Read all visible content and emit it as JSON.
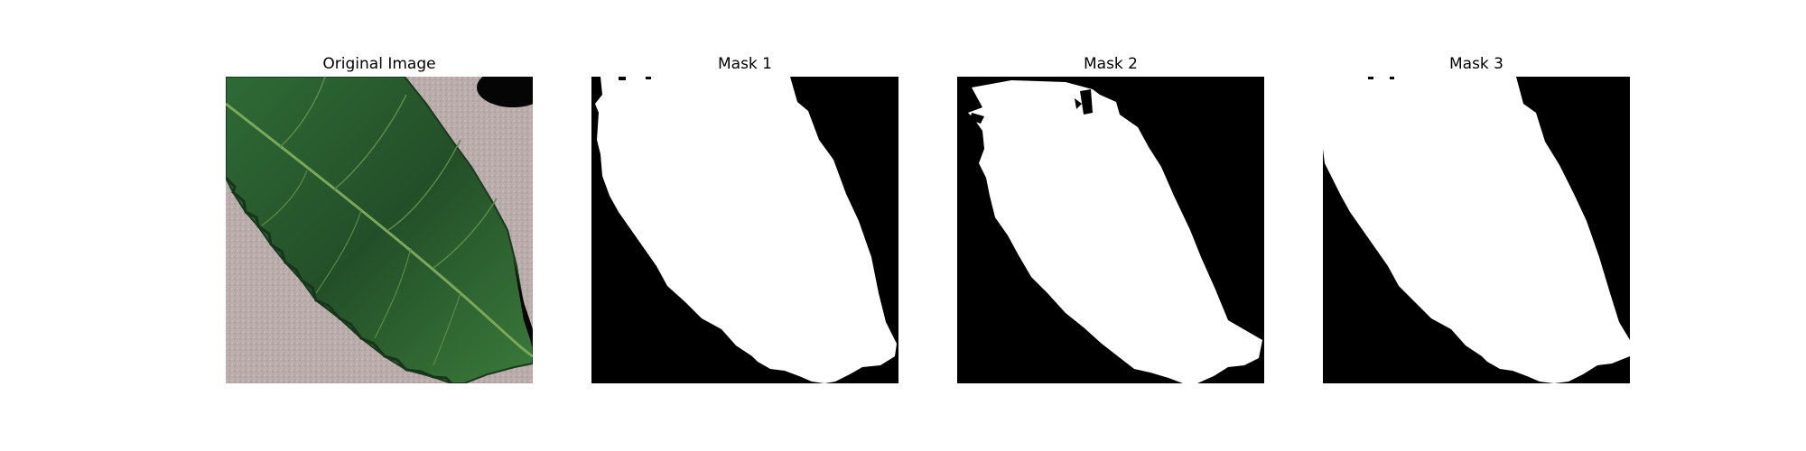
{
  "panels": [
    {
      "title": "Original Image"
    },
    {
      "title": "Mask 1"
    },
    {
      "title": "Mask 2"
    },
    {
      "title": "Mask 3"
    }
  ],
  "colors": {
    "background": "#ffffff",
    "mask_background": "#000000",
    "mask_foreground": "#ffffff",
    "leaf_dark": "#1f4a24",
    "leaf_mid": "#2f6a35",
    "leaf_vein": "#7aa85a",
    "surface": "#b9acab"
  }
}
